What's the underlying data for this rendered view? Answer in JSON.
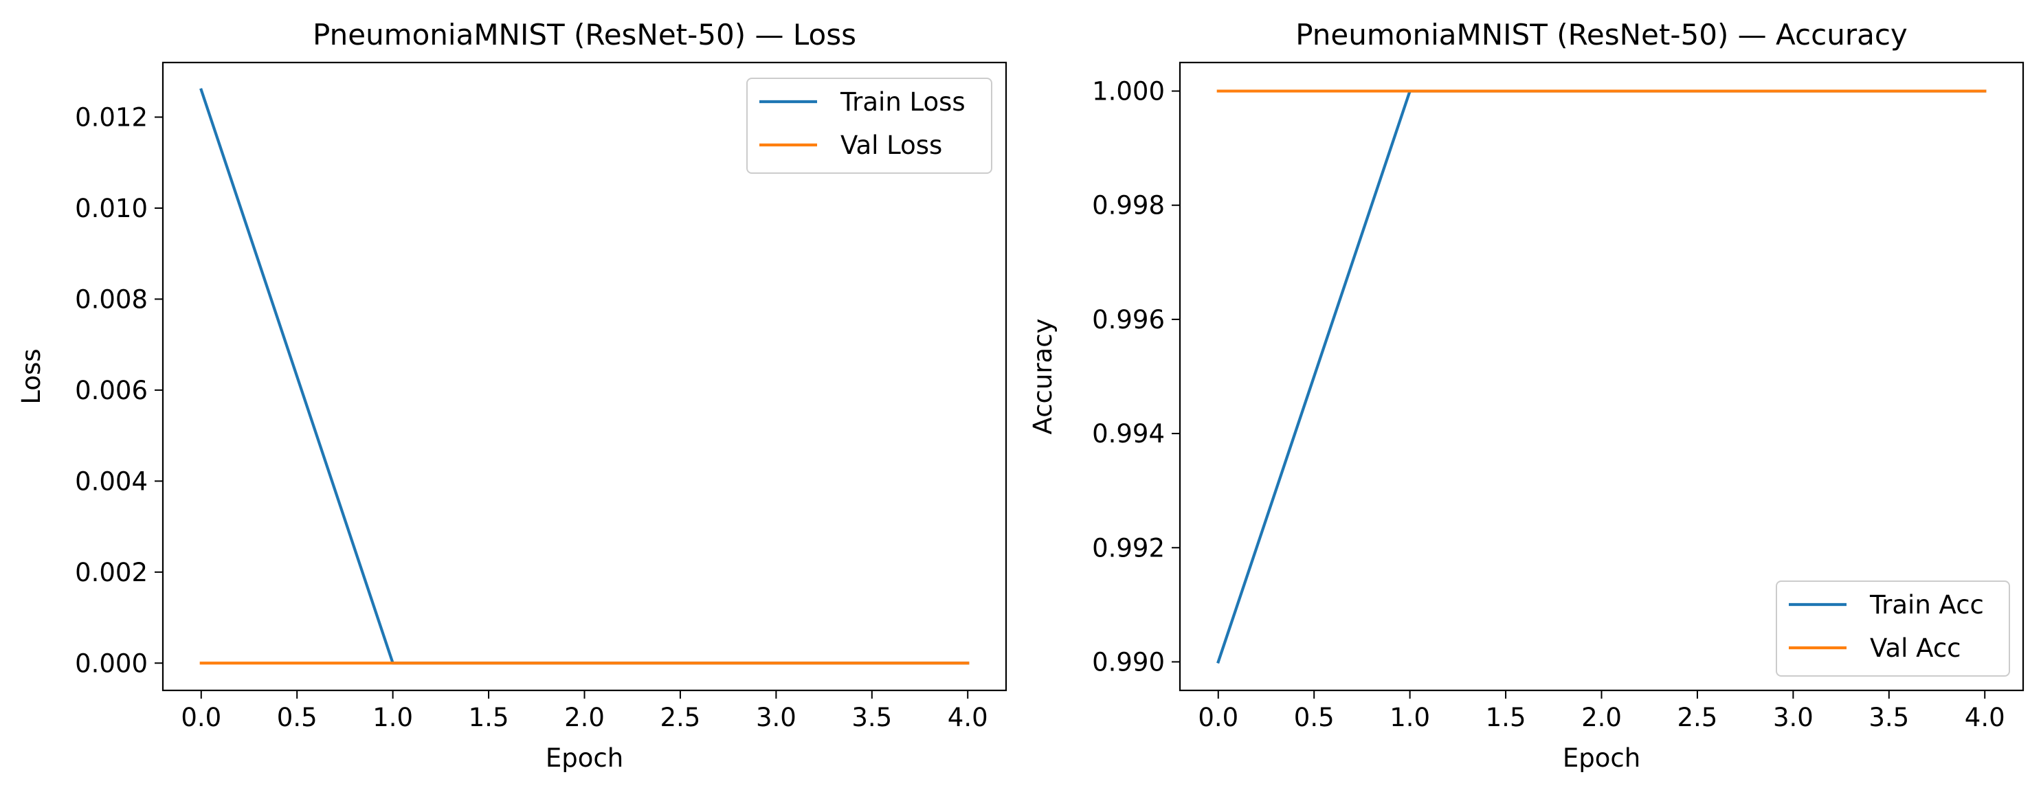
{
  "chart_data": [
    {
      "type": "line",
      "title": "PneumoniaMNIST (ResNet-50) — Loss",
      "xlabel": "Epoch",
      "ylabel": "Loss",
      "xlim": [
        -0.2,
        4.2
      ],
      "ylim": [
        -0.0006,
        0.0132
      ],
      "xticks": [
        0.0,
        0.5,
        1.0,
        1.5,
        2.0,
        2.5,
        3.0,
        3.5,
        4.0
      ],
      "xtick_labels": [
        "0.0",
        "0.5",
        "1.0",
        "1.5",
        "2.0",
        "2.5",
        "3.0",
        "3.5",
        "4.0"
      ],
      "yticks": [
        0.0,
        0.002,
        0.004,
        0.006,
        0.008,
        0.01,
        0.012
      ],
      "ytick_labels": [
        "0.000",
        "0.002",
        "0.004",
        "0.006",
        "0.008",
        "0.010",
        "0.012"
      ],
      "grid": false,
      "legend_position": "upper-right",
      "x": [
        0,
        1,
        2,
        3,
        4
      ],
      "series": [
        {
          "name": "Train Loss",
          "color": "#1f77b4",
          "values": [
            0.0126,
            0.0,
            0.0,
            0.0,
            0.0
          ]
        },
        {
          "name": "Val Loss",
          "color": "#ff7f0e",
          "values": [
            0.0,
            0.0,
            0.0,
            0.0,
            0.0
          ]
        }
      ]
    },
    {
      "type": "line",
      "title": "PneumoniaMNIST (ResNet-50) — Accuracy",
      "xlabel": "Epoch",
      "ylabel": "Accuracy",
      "xlim": [
        -0.2,
        4.2
      ],
      "ylim": [
        0.9895,
        1.0005
      ],
      "xticks": [
        0.0,
        0.5,
        1.0,
        1.5,
        2.0,
        2.5,
        3.0,
        3.5,
        4.0
      ],
      "xtick_labels": [
        "0.0",
        "0.5",
        "1.0",
        "1.5",
        "2.0",
        "2.5",
        "3.0",
        "3.5",
        "4.0"
      ],
      "yticks": [
        0.99,
        0.992,
        0.994,
        0.996,
        0.998,
        1.0
      ],
      "ytick_labels": [
        "0.990",
        "0.992",
        "0.994",
        "0.996",
        "0.998",
        "1.000"
      ],
      "grid": false,
      "legend_position": "lower-right",
      "x": [
        0,
        1,
        2,
        3,
        4
      ],
      "series": [
        {
          "name": "Train Acc",
          "color": "#1f77b4",
          "values": [
            0.99,
            1.0,
            1.0,
            1.0,
            1.0
          ]
        },
        {
          "name": "Val Acc",
          "color": "#ff7f0e",
          "values": [
            1.0,
            1.0,
            1.0,
            1.0,
            1.0
          ]
        }
      ]
    }
  ]
}
